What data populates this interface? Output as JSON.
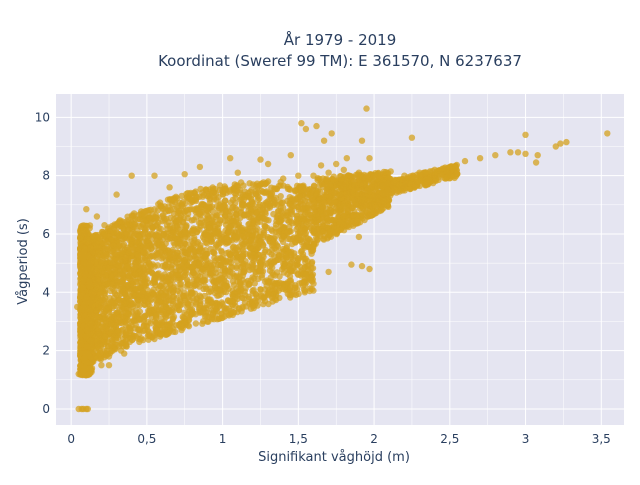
{
  "chart_data": {
    "type": "scatter",
    "title_lines": [
      "År 1979 - 2019",
      "Koordinat (Sweref 99 TM): E 361570, N 6237637"
    ],
    "xlabel": "Signifikant våghöjd (m)",
    "ylabel": "Vågperiod (s)",
    "xlim": [
      -0.1,
      3.65
    ],
    "ylim": [
      -0.55,
      10.8
    ],
    "x_ticks": [
      {
        "value": 0,
        "label": "0"
      },
      {
        "value": 0.5,
        "label": "0,5"
      },
      {
        "value": 1,
        "label": "1"
      },
      {
        "value": 1.5,
        "label": "1,5"
      },
      {
        "value": 2,
        "label": "2"
      },
      {
        "value": 2.5,
        "label": "2,5"
      },
      {
        "value": 3,
        "label": "3"
      },
      {
        "value": 3.5,
        "label": "3,5"
      }
    ],
    "y_ticks": [
      {
        "value": 0,
        "label": "0"
      },
      {
        "value": 2,
        "label": "2"
      },
      {
        "value": 4,
        "label": "4"
      },
      {
        "value": 6,
        "label": "6"
      },
      {
        "value": 8,
        "label": "8"
      },
      {
        "value": 10,
        "label": "10"
      }
    ],
    "grid": true,
    "legend": "none",
    "colors": {
      "marker": "#d4a21f",
      "plot_bg": "#e5e5f1",
      "grid": "#ffffff",
      "text": "#2a3f5f"
    },
    "series": [
      {
        "marker_opacity": 0.75,
        "points": [
          [
            0.05,
            0.0
          ],
          [
            0.07,
            0.0
          ],
          [
            0.08,
            0.0
          ],
          [
            0.1,
            0.0
          ],
          [
            0.11,
            0.0
          ],
          [
            0.05,
            1.2
          ],
          [
            0.07,
            1.2
          ],
          [
            0.09,
            1.2
          ],
          [
            0.12,
            1.2
          ],
          [
            0.04,
            3.5
          ],
          [
            0.1,
            6.85
          ],
          [
            0.17,
            6.6
          ],
          [
            0.22,
            6.3
          ],
          [
            0.3,
            7.35
          ],
          [
            0.28,
            5.6
          ],
          [
            0.2,
            1.5
          ],
          [
            0.25,
            1.8
          ],
          [
            0.33,
            2.0
          ],
          [
            0.45,
            2.3
          ],
          [
            0.55,
            2.6
          ],
          [
            0.65,
            2.9
          ],
          [
            0.75,
            3.1
          ],
          [
            0.85,
            3.3
          ],
          [
            0.95,
            3.5
          ],
          [
            1.05,
            3.7
          ],
          [
            1.15,
            3.9
          ],
          [
            1.25,
            4.1
          ],
          [
            1.35,
            4.3
          ],
          [
            1.45,
            4.4
          ],
          [
            1.55,
            4.6
          ],
          [
            1.6,
            4.3
          ],
          [
            1.7,
            4.7
          ],
          [
            1.85,
            4.95
          ],
          [
            1.92,
            4.9
          ],
          [
            1.97,
            4.8
          ],
          [
            0.15,
            4.0
          ],
          [
            0.2,
            5.0
          ],
          [
            0.3,
            5.5
          ],
          [
            0.4,
            6.0
          ],
          [
            0.5,
            6.3
          ],
          [
            0.6,
            6.6
          ],
          [
            0.7,
            6.9
          ],
          [
            0.8,
            7.1
          ],
          [
            0.9,
            7.3
          ],
          [
            1.0,
            7.5
          ],
          [
            1.1,
            7.6
          ],
          [
            1.2,
            7.7
          ],
          [
            1.3,
            7.8
          ],
          [
            1.4,
            7.9
          ],
          [
            1.5,
            8.0
          ],
          [
            1.6,
            8.0
          ],
          [
            1.7,
            8.1
          ],
          [
            1.8,
            8.2
          ],
          [
            1.9,
            8.1
          ],
          [
            2.0,
            8.0
          ],
          [
            2.1,
            7.9
          ],
          [
            2.2,
            8.0
          ],
          [
            2.3,
            8.1
          ],
          [
            2.4,
            8.2
          ],
          [
            2.5,
            8.3
          ],
          [
            2.6,
            8.5
          ],
          [
            2.7,
            8.6
          ],
          [
            2.8,
            8.7
          ],
          [
            2.9,
            8.8
          ],
          [
            2.95,
            8.8
          ],
          [
            3.0,
            8.75
          ],
          [
            3.08,
            8.7
          ],
          [
            3.07,
            8.45
          ],
          [
            3.2,
            9.0
          ],
          [
            3.23,
            9.1
          ],
          [
            3.27,
            9.15
          ],
          [
            3.0,
            9.4
          ],
          [
            3.54,
            9.45
          ],
          [
            1.95,
            10.3
          ],
          [
            1.55,
            9.6
          ],
          [
            1.52,
            9.8
          ],
          [
            1.62,
            9.7
          ],
          [
            1.67,
            9.2
          ],
          [
            1.72,
            9.45
          ],
          [
            1.92,
            9.2
          ],
          [
            1.82,
            8.6
          ],
          [
            2.25,
            9.3
          ],
          [
            1.25,
            8.55
          ],
          [
            1.05,
            8.6
          ],
          [
            1.45,
            8.7
          ],
          [
            1.65,
            8.35
          ],
          [
            1.75,
            8.4
          ],
          [
            1.97,
            8.6
          ],
          [
            0.25,
            1.5
          ],
          [
            0.35,
            1.9
          ],
          [
            0.55,
            2.4
          ],
          [
            0.75,
            3.0
          ],
          [
            1.0,
            3.6
          ],
          [
            1.25,
            4.1
          ],
          [
            1.5,
            4.6
          ],
          [
            0.4,
            8.0
          ],
          [
            0.55,
            8.0
          ],
          [
            0.65,
            7.6
          ],
          [
            0.75,
            8.05
          ],
          [
            0.85,
            8.3
          ],
          [
            1.1,
            8.1
          ],
          [
            1.3,
            8.4
          ],
          [
            1.8,
            7.6
          ],
          [
            2.0,
            7.7
          ],
          [
            1.9,
            5.9
          ],
          [
            1.8,
            6.3
          ],
          [
            1.6,
            6.1
          ],
          [
            1.5,
            5.8
          ],
          [
            1.35,
            6.2
          ],
          [
            1.2,
            5.5
          ],
          [
            1.0,
            5.2
          ],
          [
            0.8,
            4.8
          ],
          [
            0.6,
            4.3
          ],
          [
            0.45,
            3.9
          ],
          [
            0.3,
            3.3
          ],
          [
            0.18,
            2.6
          ],
          [
            0.13,
            2.1
          ],
          [
            0.1,
            1.6
          ],
          [
            0.09,
            1.4
          ],
          [
            0.08,
            1.3
          ]
        ]
      }
    ]
  }
}
